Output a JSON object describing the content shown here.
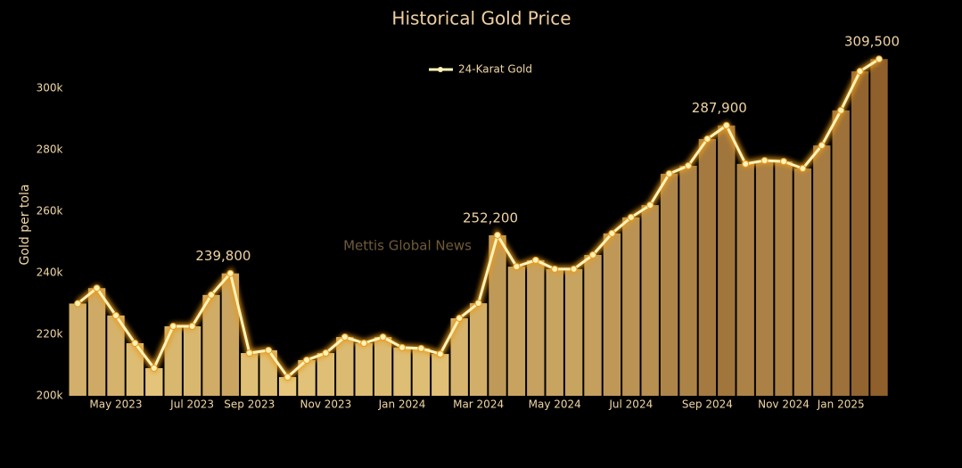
{
  "chart_data": {
    "type": "bar-line",
    "title": "Historical Gold Price",
    "y_label": "Gold per tola",
    "watermark": "Mettis Global News",
    "legend_label": "24-Karat Gold",
    "line_color": "#fff3b8",
    "glow_color": "#e89a1a",
    "colorscale": [
      "#e6c77c",
      "#8f602c"
    ],
    "categories": [
      null,
      null,
      "May 2023",
      null,
      null,
      null,
      "Jul 2023",
      null,
      null,
      "Sep 2023",
      null,
      null,
      null,
      "Nov 2023",
      null,
      null,
      null,
      "Jan 2024",
      null,
      null,
      null,
      "Mar 2024",
      null,
      null,
      null,
      "May 2024",
      null,
      null,
      null,
      "Jul 2024",
      null,
      null,
      null,
      "Sep 2024",
      null,
      null,
      null,
      "Nov 2024",
      null,
      null,
      "Jan 2025",
      null,
      null
    ],
    "values": [
      230000,
      235000,
      226100,
      217100,
      209000,
      222600,
      222600,
      232800,
      239800,
      213900,
      214800,
      206100,
      211600,
      213900,
      219100,
      217100,
      219100,
      215700,
      215400,
      213600,
      225200,
      230100,
      252200,
      242000,
      244100,
      241200,
      241200,
      245800,
      252800,
      258000,
      262000,
      272200,
      274800,
      283500,
      287900,
      275400,
      276500,
      276200,
      273900,
      281400,
      292800,
      305500,
      309500
    ],
    "value_labels": [
      null,
      null,
      null,
      null,
      null,
      null,
      null,
      null,
      "239,800",
      null,
      null,
      null,
      null,
      null,
      null,
      null,
      null,
      null,
      null,
      null,
      null,
      null,
      "252,200",
      null,
      null,
      null,
      null,
      null,
      null,
      null,
      null,
      null,
      null,
      null,
      "287,900",
      null,
      null,
      null,
      null,
      null,
      null,
      null,
      "309,500"
    ],
    "ylim": [
      200000,
      308000
    ],
    "yticks": [
      {
        "value": 200000,
        "label": "200k"
      },
      {
        "value": 220000,
        "label": "220k"
      },
      {
        "value": 240000,
        "label": "240k"
      },
      {
        "value": 260000,
        "label": "260k"
      },
      {
        "value": 280000,
        "label": "280k"
      },
      {
        "value": 300000,
        "label": "300k"
      }
    ]
  }
}
